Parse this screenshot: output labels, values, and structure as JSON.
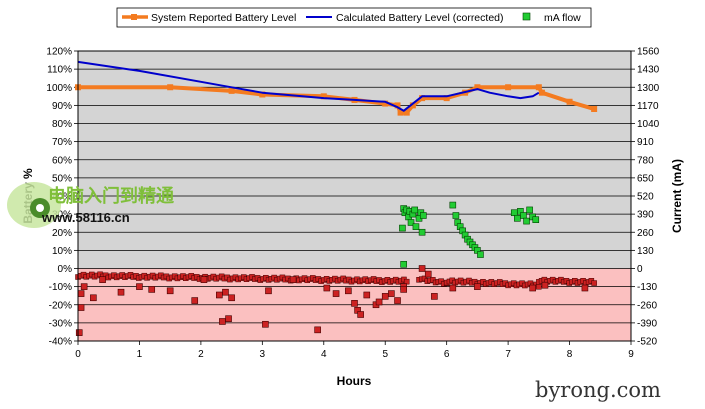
{
  "chart_data": {
    "type": "line",
    "xlabel": "Hours",
    "ylabel_left": "Battery %",
    "ylabel_right": "Current (mA)",
    "xlim": [
      0,
      9
    ],
    "ylim_left": [
      -40,
      120
    ],
    "ylim_right": [
      -520,
      1560
    ],
    "x_ticks": [
      0,
      1,
      2,
      3,
      4,
      5,
      6,
      7,
      8,
      9
    ],
    "y_left_ticks": [
      "120%",
      "110%",
      "100%",
      "90%",
      "80%",
      "70%",
      "60%",
      "50%",
      "40%",
      "30%",
      "20%",
      "10%",
      "0%",
      "-10%",
      "-20%",
      "-30%",
      "-40%"
    ],
    "y_right_ticks": [
      "1560",
      "1430",
      "1300",
      "1170",
      "1040",
      "910",
      "780",
      "650",
      "520",
      "390",
      "260",
      "130",
      "0",
      "-130",
      "-260",
      "-390",
      "-520"
    ],
    "background": {
      "positive_region": "#d4d4d4",
      "negative_region": "#fbc0c0"
    },
    "grid": true,
    "legend_position": "top",
    "series": [
      {
        "name": "System Reported Battery Level",
        "kind": "line",
        "axis": "left",
        "color": "#f47b20",
        "points": [
          [
            0,
            100
          ],
          [
            1.5,
            100
          ],
          [
            2.5,
            98
          ],
          [
            3,
            96
          ],
          [
            4,
            95
          ],
          [
            4.5,
            93
          ],
          [
            5,
            91
          ],
          [
            5.2,
            90
          ],
          [
            5.25,
            86
          ],
          [
            5.35,
            86
          ],
          [
            5.45,
            90
          ],
          [
            5.6,
            94
          ],
          [
            6,
            94
          ],
          [
            6.3,
            97
          ],
          [
            6.5,
            100
          ],
          [
            7,
            100
          ],
          [
            7.5,
            100
          ],
          [
            7.55,
            97
          ],
          [
            8,
            92
          ],
          [
            8.4,
            88
          ]
        ]
      },
      {
        "name": "Calculated Battery Level (corrected)",
        "kind": "line",
        "axis": "left",
        "color": "#0000cc",
        "points": [
          [
            0,
            114
          ],
          [
            1,
            109
          ],
          [
            2,
            103
          ],
          [
            2.5,
            100
          ],
          [
            3,
            97
          ],
          [
            4,
            94
          ],
          [
            4.5,
            93
          ],
          [
            5,
            92
          ],
          [
            5.2,
            89
          ],
          [
            5.3,
            87
          ],
          [
            5.45,
            91
          ],
          [
            5.6,
            95
          ],
          [
            6,
            95
          ],
          [
            6.5,
            99
          ],
          [
            6.7,
            97
          ],
          [
            7,
            95
          ],
          [
            7.2,
            94
          ],
          [
            7.4,
            95
          ],
          [
            7.5,
            97
          ]
        ]
      },
      {
        "name": "mA flow",
        "kind": "scatter",
        "axis": "right",
        "color": "#22cc33",
        "marker_border": "#004400",
        "points": [
          [
            5.3,
            430
          ],
          [
            5.32,
            400
          ],
          [
            5.35,
            420
          ],
          [
            5.38,
            370
          ],
          [
            5.4,
            410
          ],
          [
            5.42,
            330
          ],
          [
            5.45,
            390
          ],
          [
            5.48,
            420
          ],
          [
            5.5,
            300
          ],
          [
            5.55,
            360
          ],
          [
            5.58,
            400
          ],
          [
            5.6,
            260
          ],
          [
            5.62,
            380
          ],
          [
            5.28,
            290
          ],
          [
            5.3,
            30
          ],
          [
            6.1,
            455
          ],
          [
            6.15,
            380
          ],
          [
            6.18,
            330
          ],
          [
            6.22,
            300
          ],
          [
            6.26,
            270
          ],
          [
            6.3,
            240
          ],
          [
            6.34,
            210
          ],
          [
            6.38,
            190
          ],
          [
            6.42,
            170
          ],
          [
            6.46,
            150
          ],
          [
            6.5,
            130
          ],
          [
            6.55,
            100
          ],
          [
            7.1,
            400
          ],
          [
            7.15,
            360
          ],
          [
            7.2,
            410
          ],
          [
            7.25,
            380
          ],
          [
            7.3,
            340
          ],
          [
            7.35,
            420
          ],
          [
            7.4,
            370
          ],
          [
            7.45,
            350
          ]
        ]
      },
      {
        "name": "",
        "kind": "scatter",
        "axis": "right",
        "color": "#cc2222",
        "marker_border": "#440000",
        "points": [
          [
            0.02,
            -460
          ],
          [
            0.05,
            -180
          ],
          [
            0.05,
            -280
          ],
          [
            0.1,
            -130
          ],
          [
            0.25,
            -210
          ],
          [
            0.4,
            -80
          ],
          [
            0.7,
            -170
          ],
          [
            1,
            -130
          ],
          [
            1.2,
            -150
          ],
          [
            1.5,
            -160
          ],
          [
            1.9,
            -230
          ],
          [
            2.05,
            -80
          ],
          [
            2.3,
            -190
          ],
          [
            2.35,
            -380
          ],
          [
            2.4,
            -170
          ],
          [
            2.45,
            -360
          ],
          [
            2.5,
            -210
          ],
          [
            3.05,
            -400
          ],
          [
            3.1,
            -160
          ],
          [
            3.5,
            -80
          ],
          [
            3.9,
            -440
          ],
          [
            4.05,
            -140
          ],
          [
            4.2,
            -180
          ],
          [
            4.4,
            -160
          ],
          [
            4.5,
            -250
          ],
          [
            4.55,
            -300
          ],
          [
            4.6,
            -330
          ],
          [
            4.7,
            -190
          ],
          [
            4.85,
            -260
          ],
          [
            4.9,
            -240
          ],
          [
            5,
            -200
          ],
          [
            5.1,
            -180
          ],
          [
            5.2,
            -230
          ],
          [
            5.3,
            -130
          ],
          [
            5.3,
            -150
          ],
          [
            5.6,
            0
          ],
          [
            5.7,
            -40
          ],
          [
            5.8,
            -200
          ],
          [
            6.1,
            -140
          ],
          [
            6.5,
            -130
          ],
          [
            7.4,
            -140
          ],
          [
            7.6,
            -120
          ],
          [
            8.25,
            -140
          ]
        ]
      }
    ],
    "negative_trend": {
      "axis": "right",
      "color": "#cc2222",
      "marker_border": "#440000",
      "ranges": [
        [
          0,
          5.35,
          -50,
          -90
        ],
        [
          5.55,
          6.0,
          -70,
          -110
        ],
        [
          6.0,
          7.5,
          -90,
          -120
        ],
        [
          7.5,
          8.4,
          -85,
          -100
        ]
      ]
    }
  },
  "watermarks": {
    "chinese": "电脑入门到精通",
    "url": "www.58116.cn",
    "corner": "byrong.com"
  }
}
